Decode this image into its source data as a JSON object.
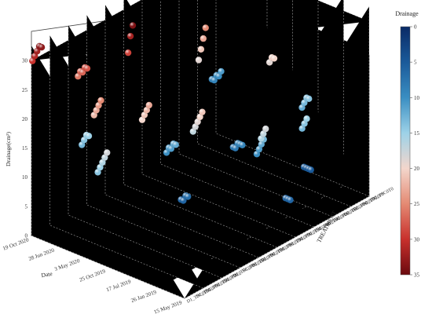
{
  "chart_data": {
    "type": "scatter",
    "title": "",
    "zlabel": "Drainage(cm³)",
    "xlabel": "Date",
    "ylabel": "TREATMENT",
    "zlim": [
      0,
      35
    ],
    "z_ticks": [
      "0",
      "5",
      "10",
      "15",
      "20",
      "25",
      "30"
    ],
    "date_ticks": [
      "15 May 2019",
      "26 Jan 2019",
      "17 Jul 2019",
      "25 Oct 2019",
      "3 May 2020",
      "28 Jun 2020",
      "19 Oct 2020"
    ],
    "treatments": [
      "D1_TSC0T50",
      "D1_TSC0P50",
      "D1_TSC0T20",
      "D1_TSC0P20",
      "D1_TSC0",
      "D1_TSC0P80",
      "D1_TSC0T80",
      "D1_TSC0P90",
      "D1_TSC0T90",
      "D1_TSC0P10",
      "D1_TSC0T10",
      "D1_TSC0P30",
      "D1_TSC0T30",
      "D1_TSC0P40",
      "D1_TSC0T40",
      "D0_TSC0P60",
      "D0_TSC0T60",
      "D0_TSC0P70",
      "D0_TSC0T70",
      "D0_TSC0P0",
      "D0_TSC0T0"
    ],
    "colorbar": {
      "title": "Drainage",
      "range": [
        0,
        35
      ],
      "ticks": [
        "0",
        "5",
        "10",
        "15",
        "20",
        "25",
        "30",
        "35"
      ],
      "colors": [
        "#0a2a66",
        "#1a5a9a",
        "#3a8ec2",
        "#9dd2e8",
        "#f3d6cc",
        "#e48a73",
        "#c8302c",
        "#6b0a0f"
      ]
    },
    "grid": true,
    "groups": [
      {
        "date_index": 5.6,
        "treatment_index": 0,
        "values": [
          33,
          33,
          32,
          31,
          30
        ]
      },
      {
        "date_index": 4.9,
        "treatment_index": 3,
        "values": [
          28,
          28,
          27,
          27,
          26
        ]
      },
      {
        "date_index": 4.0,
        "treatment_index": 2,
        "values": [
          25,
          24,
          23,
          22
        ]
      },
      {
        "date_index": 3.2,
        "treatment_index": 5,
        "values": [
          23,
          22,
          21,
          20
        ]
      },
      {
        "date_index": 2.2,
        "treatment_index": 8,
        "values": [
          21,
          20,
          19,
          18,
          17
        ]
      },
      {
        "date_index": 0.8,
        "treatment_index": 11,
        "values": [
          18,
          17,
          16
        ]
      },
      {
        "date_index": 1.6,
        "treatment_index": 13,
        "values": [
          13,
          12,
          11,
          10
        ]
      },
      {
        "date_index": 5.2,
        "treatment_index": 4,
        "values": [
          15,
          15,
          14,
          13
        ]
      },
      {
        "date_index": 3.6,
        "treatment_index": 9,
        "values": [
          12,
          12,
          11,
          11,
          10
        ]
      },
      {
        "date_index": 2.8,
        "treatment_index": 14,
        "values": [
          9,
          9,
          9,
          8,
          8
        ]
      },
      {
        "date_index": 0.2,
        "treatment_index": 12,
        "values": [
          6,
          6,
          6
        ]
      },
      {
        "date_index": 1.2,
        "treatment_index": 17,
        "values": [
          5,
          5,
          5,
          5
        ]
      },
      {
        "date_index": 4.6,
        "treatment_index": 15,
        "values": [
          25,
          23,
          21,
          19
        ]
      },
      {
        "date_index": 3.0,
        "treatment_index": 18,
        "values": [
          20,
          20,
          19
        ]
      },
      {
        "date_index": 2.0,
        "treatment_index": 19,
        "values": [
          14,
          14,
          13,
          12
        ]
      },
      {
        "date_index": 5.8,
        "treatment_index": 20,
        "values": [
          11,
          10,
          10,
          9,
          9
        ]
      },
      {
        "date_index": 1.0,
        "treatment_index": 16,
        "values": [
          15,
          14,
          13
        ]
      },
      {
        "date_index": 4.2,
        "treatment_index": 6,
        "values": [
          34,
          32,
          29
        ]
      },
      {
        "date_index": 3.4,
        "treatment_index": 1,
        "values": [
          18,
          17,
          16,
          15,
          14
        ]
      },
      {
        "date_index": 2.4,
        "treatment_index": 7,
        "values": [
          7,
          7,
          6,
          6
        ]
      }
    ]
  }
}
